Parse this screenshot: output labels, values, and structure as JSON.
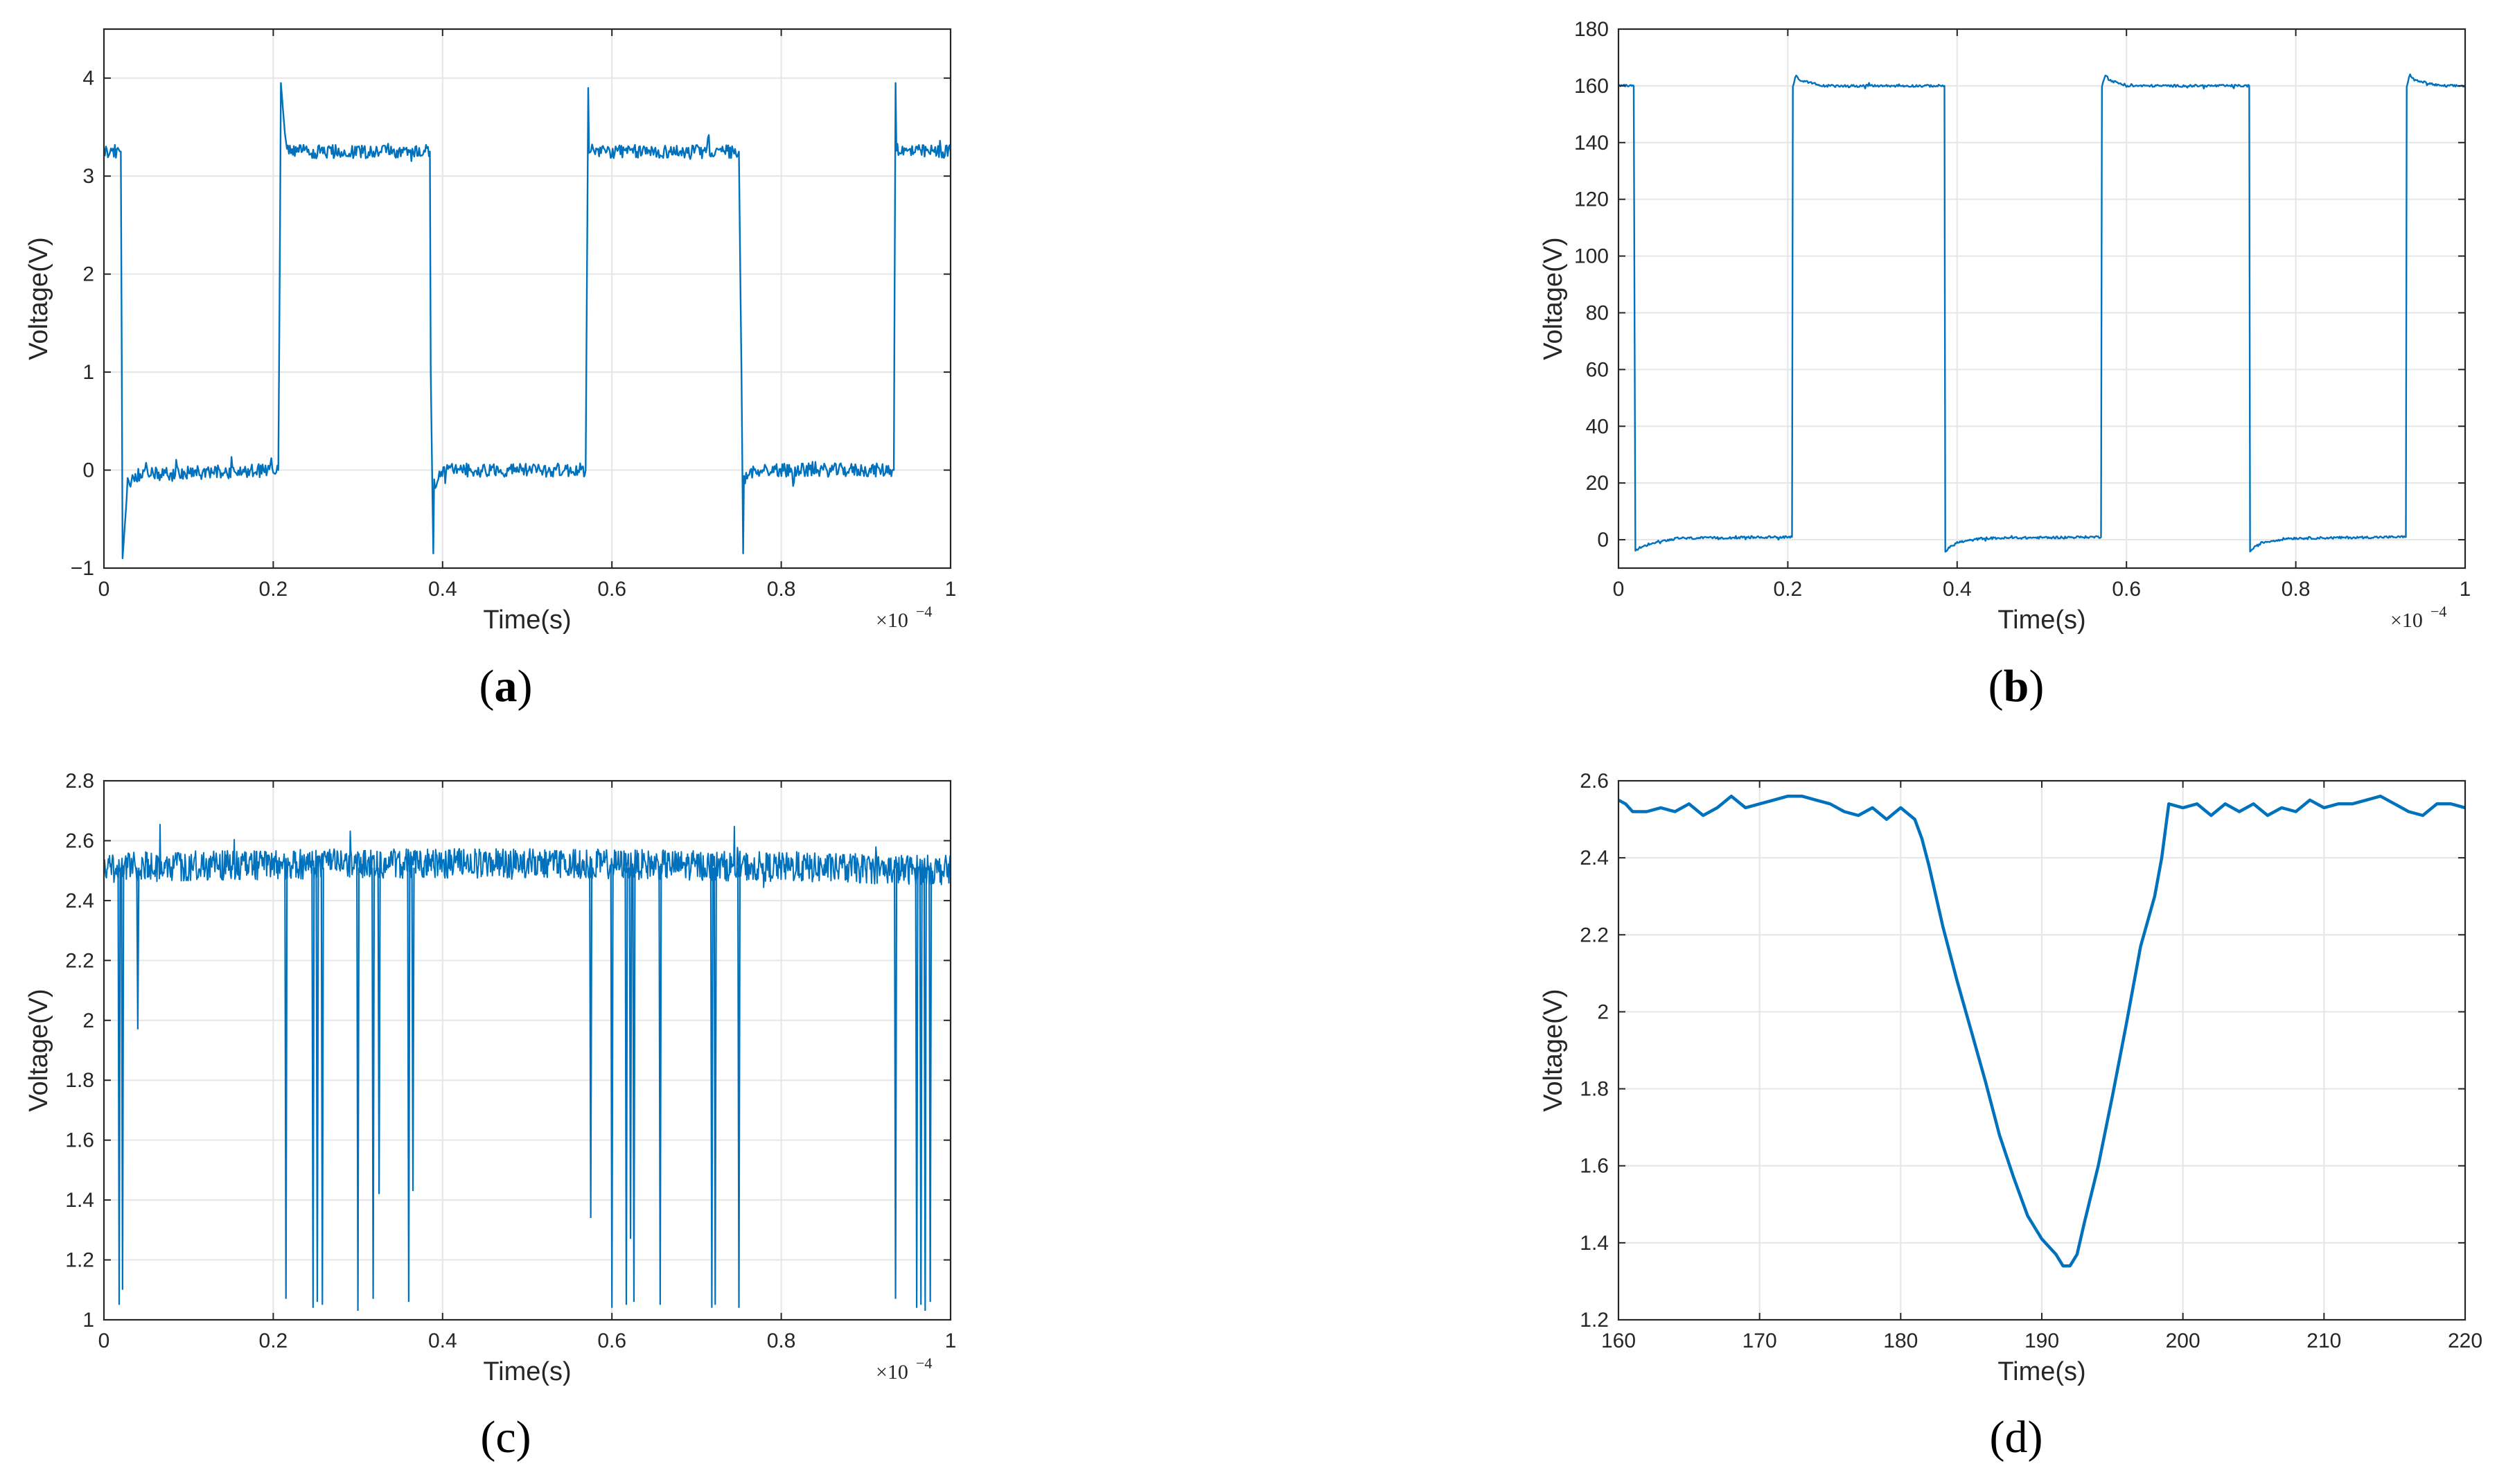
{
  "colors": {
    "line": "#0072BD",
    "axis": "#262626",
    "grid": "#e6e6e6"
  },
  "chart_data": [
    {
      "type": "line",
      "id": "a",
      "caption_prefix": "(",
      "caption_letter": "a",
      "caption_suffix": ")",
      "caption_bold": true,
      "xlabel": "Time(s)",
      "ylabel": "Voltage(V)",
      "xlim": [
        0,
        1
      ],
      "ylim": [
        -1,
        4.5
      ],
      "xticks": [
        0,
        0.2,
        0.4,
        0.6,
        0.8,
        1
      ],
      "xtick_labels": [
        "0",
        "0.2",
        "0.4",
        "0.6",
        "0.8",
        "1"
      ],
      "yticks": [
        -1,
        0,
        1,
        2,
        3,
        4
      ],
      "ytick_labels": [
        "−1",
        "0",
        "1",
        "2",
        "3",
        "4"
      ],
      "x_multiplier_base": "×10",
      "x_multiplier_exp": "−4",
      "grid": true,
      "series": [
        {
          "name": "Voltage",
          "x": [
            0,
            0.02,
            0.021,
            0.022,
            0.028,
            0.036,
            0.2,
            0.206,
            0.208,
            0.209,
            0.215,
            0.222,
            0.385,
            0.386,
            0.389,
            0.39,
            0.395,
            0.402,
            0.567,
            0.569,
            0.572,
            0.573,
            0.579,
            0.586,
            0.75,
            0.753,
            0.755,
            0.756,
            0.761,
            0.768,
            0.93,
            0.933,
            0.935,
            0.936,
            0.942,
            0.95,
            1
          ],
          "y": [
            3.25,
            3.25,
            1.2,
            -0.9,
            -0.15,
            -0.05,
            0,
            0,
            2.5,
            3.95,
            3.3,
            3.25,
            3.25,
            1.0,
            -0.85,
            -0.15,
            -0.07,
            0,
            0,
            0,
            3.9,
            3.3,
            3.25,
            3.25,
            3.25,
            1.0,
            -0.85,
            -0.12,
            -0.06,
            0,
            0,
            0,
            3.95,
            3.3,
            3.25,
            3.25,
            3.25
          ]
        }
      ],
      "noise": {
        "amplitude": 0.07
      }
    },
    {
      "type": "line",
      "id": "b",
      "caption_prefix": "(",
      "caption_letter": "b",
      "caption_suffix": ")",
      "caption_bold": true,
      "xlabel": "Time(s)",
      "ylabel": "Voltage(V)",
      "xlim": [
        0,
        1
      ],
      "ylim": [
        -10,
        180
      ],
      "xticks": [
        0,
        0.2,
        0.4,
        0.6,
        0.8,
        1
      ],
      "xtick_labels": [
        "0",
        "0.2",
        "0.4",
        "0.6",
        "0.8",
        "1"
      ],
      "yticks": [
        0,
        20,
        40,
        60,
        80,
        100,
        120,
        140,
        160,
        180
      ],
      "ytick_labels": [
        "0",
        "20",
        "40",
        "60",
        "80",
        "100",
        "120",
        "140",
        "160",
        "180"
      ],
      "x_multiplier_base": "×10",
      "x_multiplier_exp": "−4",
      "grid": true,
      "series": [
        {
          "name": "Voltage",
          "x": [
            0,
            0.018,
            0.02,
            0.024,
            0.04,
            0.07,
            0.205,
            0.206,
            0.21,
            0.214,
            0.24,
            0.385,
            0.386,
            0.39,
            0.4,
            0.43,
            0.57,
            0.571,
            0.575,
            0.58,
            0.6,
            0.745,
            0.746,
            0.75,
            0.76,
            0.79,
            0.93,
            0.931,
            0.935,
            0.94,
            0.97,
            1
          ],
          "y": [
            160,
            160,
            -4,
            -3,
            -1,
            0.5,
            1,
            160,
            164,
            162,
            160,
            160,
            -4,
            -3,
            -1,
            0.5,
            1,
            160,
            164,
            162,
            160,
            160,
            -4,
            -3,
            -1,
            0.5,
            1,
            160,
            164,
            162,
            160,
            160
          ]
        }
      ],
      "noise": {
        "amplitude": 0.4
      }
    },
    {
      "type": "line",
      "id": "c",
      "caption_prefix": "(",
      "caption_letter": "c",
      "caption_suffix": ")",
      "caption_bold": false,
      "xlabel": "Time(s)",
      "ylabel": "Voltage(V)",
      "xlim": [
        0,
        1
      ],
      "ylim": [
        1,
        2.8
      ],
      "xticks": [
        0,
        0.2,
        0.4,
        0.6,
        0.8,
        1
      ],
      "xtick_labels": [
        "0",
        "0.2",
        "0.4",
        "0.6",
        "0.8",
        "1"
      ],
      "yticks": [
        1,
        1.2,
        1.4,
        1.6,
        1.8,
        2,
        2.2,
        2.4,
        2.6,
        2.8
      ],
      "ytick_labels": [
        "1",
        "1.2",
        "1.4",
        "1.6",
        "1.8",
        "2",
        "2.2",
        "2.4",
        "2.6",
        "2.8"
      ],
      "x_multiplier_base": "×10",
      "x_multiplier_exp": "−4",
      "grid": true,
      "baseline": 2.51,
      "noise": {
        "amplitude": 0.1
      },
      "spikes": {
        "x": [
          0.018,
          0.022,
          0.04,
          0.215,
          0.247,
          0.252,
          0.258,
          0.3,
          0.318,
          0.325,
          0.36,
          0.365,
          0.575,
          0.6,
          0.617,
          0.622,
          0.626,
          0.657,
          0.718,
          0.722,
          0.75,
          0.935,
          0.96,
          0.965,
          0.97,
          0.976
        ],
        "y": [
          1.05,
          1.1,
          1.97,
          1.07,
          1.04,
          1.06,
          1.05,
          1.03,
          1.07,
          1.42,
          1.06,
          1.43,
          1.34,
          1.04,
          1.05,
          1.27,
          1.06,
          1.05,
          1.04,
          1.05,
          1.04,
          1.07,
          1.04,
          1.05,
          1.03,
          1.06
        ]
      }
    },
    {
      "type": "line",
      "id": "d",
      "caption_prefix": "(",
      "caption_letter": "d",
      "caption_suffix": ")",
      "caption_bold": false,
      "xlabel": "Time(s)",
      "ylabel": "Voltage(V)",
      "xlim": [
        160,
        220
      ],
      "ylim": [
        1.2,
        2.6
      ],
      "xticks": [
        160,
        170,
        180,
        190,
        200,
        210,
        220
      ],
      "xtick_labels": [
        "160",
        "170",
        "180",
        "190",
        "200",
        "210",
        "220"
      ],
      "yticks": [
        1.2,
        1.4,
        1.6,
        1.8,
        2,
        2.2,
        2.4,
        2.6
      ],
      "ytick_labels": [
        "1.2",
        "1.4",
        "1.6",
        "1.8",
        "2",
        "2.2",
        "2.4",
        "2.6"
      ],
      "x_multiplier_base": "",
      "x_multiplier_exp": "",
      "grid": true,
      "series": [
        {
          "name": "Voltage",
          "x": [
            160,
            160.5,
            161,
            162,
            163,
            164,
            165,
            166,
            167,
            168,
            169,
            170,
            171,
            172,
            173,
            174,
            175,
            176,
            177,
            178,
            179,
            180,
            181,
            181.5,
            182,
            183,
            184,
            185,
            186,
            187,
            188,
            189,
            190,
            191,
            191.5,
            192,
            192.5,
            193,
            194,
            195,
            196,
            197,
            198,
            198.5,
            199,
            200,
            201,
            202,
            203,
            204,
            205,
            206,
            207,
            208,
            209,
            210,
            211,
            212,
            213,
            214,
            215,
            216,
            217,
            218,
            219,
            220
          ],
          "y": [
            2.55,
            2.54,
            2.52,
            2.52,
            2.53,
            2.52,
            2.54,
            2.51,
            2.53,
            2.56,
            2.53,
            2.54,
            2.55,
            2.56,
            2.56,
            2.55,
            2.54,
            2.52,
            2.51,
            2.53,
            2.5,
            2.53,
            2.5,
            2.45,
            2.38,
            2.22,
            2.08,
            1.95,
            1.82,
            1.68,
            1.57,
            1.47,
            1.41,
            1.37,
            1.34,
            1.34,
            1.37,
            1.45,
            1.6,
            1.78,
            1.97,
            2.17,
            2.3,
            2.4,
            2.54,
            2.53,
            2.54,
            2.51,
            2.54,
            2.52,
            2.54,
            2.51,
            2.53,
            2.52,
            2.55,
            2.53,
            2.54,
            2.54,
            2.55,
            2.56,
            2.54,
            2.52,
            2.51,
            2.54,
            2.54,
            2.53
          ]
        }
      ]
    }
  ]
}
